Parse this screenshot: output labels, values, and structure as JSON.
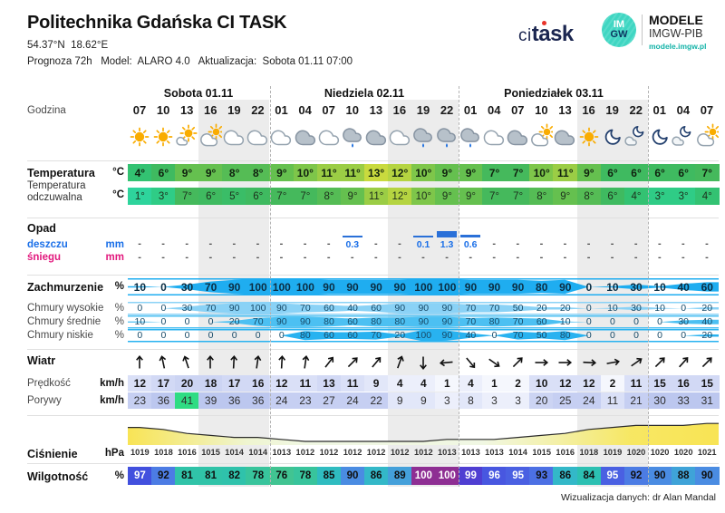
{
  "header": {
    "title": "Politechnika Gdańska CI TASK",
    "coords": "54.37°N  18.62°E",
    "meta": "Prognoza 72h   Model:  ALARO 4.0   Aktualizacja:  Sobota 01.11 07:00",
    "logo_citask": {
      "ci": "ci",
      "task": "task"
    },
    "logo_imgw": {
      "line1": "IM",
      "line2": "GW"
    },
    "modele": {
      "line1": "MODELE",
      "line2": "IMGW-PIB",
      "url": "modele.imgw.pl"
    }
  },
  "days": [
    {
      "label": "Sobota 01.11"
    },
    {
      "label": "Niedziela 02.11"
    },
    {
      "label": "Poniedziałek 03.11"
    }
  ],
  "labels": {
    "godzina": "Godzina",
    "temperatura": "Temperatura",
    "odczuwalna_1": "Temperatura",
    "odczuwalna_2": "odczuwalna",
    "opad": "Opad",
    "deszczu": "deszczu",
    "sniegu": "śniegu",
    "zachmurzenie": "Zachmurzenie",
    "chmury_wysokie": "Chmury wysokie",
    "chmury_srednie": "Chmury średnie",
    "chmury_niskie": "Chmury niskie",
    "wiatr": "Wiatr",
    "predkosc": "Prędkość",
    "porywy": "Porywy",
    "cisnienie": "Ciśnienie",
    "wilgotnosc": "Wilgotność",
    "unit_c": "°C",
    "unit_mm": "mm",
    "unit_pct": "%",
    "unit_kmh": "km/h",
    "unit_hpa": "hPa",
    "dash": "-"
  },
  "footer": "Wizualizacja danych: dr Alan Mandal",
  "chart_data": {
    "type": "table",
    "title": "Prognoza 72h ALARO 4.0 — Politechnika Gdańska CI TASK",
    "hours": [
      "07",
      "10",
      "13",
      "16",
      "19",
      "22",
      "01",
      "04",
      "07",
      "10",
      "13",
      "16",
      "19",
      "22",
      "01",
      "04",
      "07",
      "10",
      "13",
      "16",
      "19",
      "22",
      "01",
      "04",
      "07"
    ],
    "icons": [
      "sun",
      "sun",
      "sun-cloud",
      "cloud-sun",
      "cloud-white",
      "cloud-white",
      "cloud-white",
      "cloud-gray",
      "cloud-white",
      "rain",
      "cloud-gray",
      "cloud-white",
      "rain",
      "rain",
      "rain",
      "cloud-white",
      "cloud-gray",
      "cloud-sun",
      "cloud-gray",
      "sun",
      "moon",
      "moon-cloud",
      "moon",
      "moon-cloud",
      "cloud-sun"
    ],
    "temperature_c": [
      4,
      6,
      9,
      9,
      8,
      8,
      9,
      10,
      11,
      11,
      13,
      12,
      10,
      9,
      9,
      7,
      7,
      10,
      11,
      9,
      6,
      6,
      6,
      6,
      7
    ],
    "feels_like_c": [
      1,
      3,
      7,
      6,
      5,
      6,
      7,
      7,
      8,
      9,
      11,
      12,
      10,
      9,
      9,
      7,
      7,
      8,
      9,
      8,
      6,
      4,
      3,
      3,
      4
    ],
    "rain_mm": [
      null,
      null,
      null,
      null,
      null,
      null,
      null,
      null,
      null,
      0.3,
      null,
      null,
      0.1,
      1.3,
      0.6,
      null,
      null,
      null,
      null,
      null,
      null,
      null,
      null,
      null,
      null
    ],
    "snow_mm": [
      null,
      null,
      null,
      null,
      null,
      null,
      null,
      null,
      null,
      null,
      null,
      null,
      null,
      null,
      null,
      null,
      null,
      null,
      null,
      null,
      null,
      null,
      null,
      null,
      null
    ],
    "cloud_total_pct": [
      10,
      0,
      30,
      70,
      90,
      100,
      100,
      100,
      90,
      90,
      90,
      90,
      100,
      100,
      90,
      90,
      90,
      80,
      90,
      0,
      10,
      30,
      10,
      40,
      60
    ],
    "cloud_high_pct": [
      0,
      0,
      30,
      70,
      90,
      100,
      90,
      70,
      60,
      40,
      60,
      90,
      90,
      90,
      70,
      70,
      50,
      20,
      20,
      0,
      10,
      30,
      10,
      0,
      20
    ],
    "cloud_mid_pct": [
      10,
      0,
      0,
      0,
      20,
      70,
      90,
      90,
      80,
      60,
      80,
      80,
      90,
      90,
      70,
      80,
      70,
      60,
      10,
      0,
      0,
      0,
      0,
      30,
      40
    ],
    "cloud_low_pct": [
      0,
      0,
      0,
      0,
      0,
      0,
      0,
      80,
      60,
      60,
      70,
      20,
      100,
      90,
      40,
      0,
      70,
      50,
      80,
      0,
      0,
      0,
      0,
      0,
      20
    ],
    "wind_dir_deg": [
      0,
      -12,
      -18,
      0,
      3,
      8,
      3,
      8,
      38,
      45,
      40,
      20,
      180,
      265,
      140,
      125,
      45,
      90,
      90,
      93,
      80,
      55,
      45,
      42,
      45
    ],
    "wind_speed_kmh": [
      12,
      17,
      20,
      18,
      17,
      16,
      12,
      11,
      13,
      11,
      9,
      4,
      4,
      1,
      4,
      1,
      2,
      10,
      12,
      12,
      2,
      11,
      15,
      16,
      15
    ],
    "wind_gust_kmh": [
      23,
      36,
      41,
      39,
      36,
      36,
      24,
      23,
      27,
      24,
      22,
      9,
      9,
      3,
      8,
      3,
      3,
      20,
      25,
      24,
      11,
      21,
      30,
      33,
      31
    ],
    "pressure_hpa": [
      1019,
      1018,
      1016,
      1015,
      1014,
      1014,
      1013,
      1012,
      1012,
      1012,
      1012,
      1012,
      1012,
      1013,
      1013,
      1013,
      1014,
      1015,
      1016,
      1018,
      1019,
      1020,
      1020,
      1020,
      1021
    ],
    "humidity_pct": [
      97,
      92,
      81,
      81,
      82,
      78,
      76,
      78,
      85,
      90,
      86,
      89,
      100,
      100,
      99,
      96,
      95,
      93,
      86,
      84,
      95,
      92,
      90,
      88,
      90
    ]
  },
  "colors": {
    "night_stripe": "#ececec",
    "temp_map": {
      "1": "#2ed49c",
      "3": "#2fcc86",
      "4": "#33c272",
      "5": "#3abd67",
      "6": "#3fba60",
      "7": "#45b95c",
      "8": "#55bc55",
      "9": "#65c04f",
      "10": "#7ec64a",
      "11": "#9bcd45",
      "12": "#b5d441",
      "13": "#c9da3e"
    },
    "humidity_map": {
      "76": "#41c492",
      "78": "#38c49c",
      "81": "#30c3a8",
      "82": "#2fc2ab",
      "84": "#2cc0b2",
      "85": "#2fbcc0",
      "86": "#33b8c8",
      "88": "#3fa3d8",
      "89": "#44a0da",
      "90": "#4a8ce2",
      "92": "#4c7ce4",
      "93": "#4c70e4",
      "95": "#4a60e2",
      "96": "#4857e0",
      "97": "#4250de",
      "99": "#4f3ed2",
      "100": "#8e2e93"
    },
    "wind_steps": [
      [
        2,
        "#f5f7fd"
      ],
      [
        4,
        "#eceffb"
      ],
      [
        9,
        "#e2e7f9"
      ],
      [
        12,
        "#dae0f7"
      ],
      [
        17,
        "#d2d9f5"
      ],
      [
        20,
        "#ccd4f3"
      ],
      [
        27,
        "#c6cff2"
      ],
      [
        39,
        "#bcc7ef"
      ],
      [
        999,
        "#2edc83"
      ]
    ],
    "cloud_blue": {
      "total": "#1fadf0",
      "high": "#8ad2f6",
      "mid": "#4cc0f2",
      "low": "#28b2f0"
    },
    "rain_bar": "#2a70d8",
    "rain_text": "#1a6fe8",
    "snow_text": "#e2187d",
    "pressure_line": "#2b2b2b",
    "pressure_stops": [
      [
        "0%",
        "#f8e34f"
      ],
      [
        "8%",
        "#f4ea82"
      ],
      [
        "20%",
        "#eff5cf"
      ],
      [
        "30%",
        "#f0f7e2"
      ],
      [
        "60%",
        "#f0f7e2"
      ],
      [
        "72%",
        "#f3f0a8"
      ],
      [
        "85%",
        "#f7e75f"
      ],
      [
        "100%",
        "#f8e34f"
      ]
    ]
  }
}
